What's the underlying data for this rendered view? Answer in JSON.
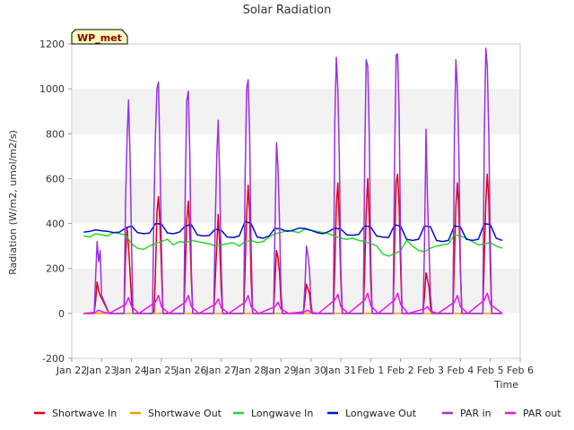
{
  "chart_data": {
    "type": "line",
    "title": "Solar Radiation",
    "xlabel": "Time",
    "ylabel": "Radiation (W/m2, umol/m2/s)",
    "ylim": [
      -200,
      1200
    ],
    "yticks": [
      -200,
      0,
      200,
      400,
      600,
      800,
      1000,
      1200
    ],
    "xlim": [
      0,
      15
    ],
    "xticks": [
      {
        "pos": 0,
        "label": "Jan 22"
      },
      {
        "pos": 1,
        "label": "Jan 23"
      },
      {
        "pos": 2,
        "label": "Jan 24"
      },
      {
        "pos": 3,
        "label": "Jan 25"
      },
      {
        "pos": 4,
        "label": "Jan 26"
      },
      {
        "pos": 5,
        "label": "Jan 27"
      },
      {
        "pos": 6,
        "label": "Jan 28"
      },
      {
        "pos": 7,
        "label": "Jan 29"
      },
      {
        "pos": 8,
        "label": "Jan 30"
      },
      {
        "pos": 9,
        "label": "Jan 31"
      },
      {
        "pos": 10,
        "label": "Feb 1"
      },
      {
        "pos": 11,
        "label": "Feb 2"
      },
      {
        "pos": 12,
        "label": "Feb 3"
      },
      {
        "pos": 13,
        "label": "Feb 4"
      },
      {
        "pos": 14,
        "label": "Feb 5"
      },
      {
        "pos": 15,
        "label": "Feb 6"
      }
    ],
    "grid_bands": true,
    "legend_position": "bottom",
    "site_label": "WP_met",
    "series": [
      {
        "name": "Shortwave In",
        "color": "#e0000c",
        "x": [
          0.4,
          0.75,
          0.8,
          0.85,
          0.9,
          0.95,
          1.25,
          1.75,
          1.8,
          1.85,
          1.9,
          1.95,
          2.0,
          2.05,
          2.25,
          2.75,
          2.8,
          2.85,
          2.9,
          2.95,
          3.0,
          3.05,
          3.25,
          3.75,
          3.8,
          3.85,
          3.9,
          3.95,
          4.0,
          4.05,
          4.25,
          4.75,
          4.8,
          4.85,
          4.9,
          4.95,
          5.0,
          5.05,
          5.25,
          5.75,
          5.8,
          5.85,
          5.9,
          5.95,
          6.0,
          6.05,
          6.25,
          6.75,
          6.8,
          6.85,
          6.9,
          6.95,
          7.0,
          7.05,
          7.25,
          7.75,
          7.8,
          7.85,
          7.9,
          7.95,
          8.0,
          8.05,
          8.25,
          8.75,
          8.8,
          8.85,
          8.9,
          8.95,
          9.0,
          9.05,
          9.25,
          9.75,
          9.8,
          9.85,
          9.9,
          9.95,
          10.0,
          10.05,
          10.25,
          10.75,
          10.8,
          10.85,
          10.9,
          10.95,
          11.0,
          11.05,
          11.25,
          11.75,
          11.8,
          11.85,
          11.9,
          11.95,
          12.0,
          12.05,
          12.25,
          12.75,
          12.8,
          12.85,
          12.9,
          12.95,
          13.0,
          13.05,
          13.25,
          13.75,
          13.8,
          13.85,
          13.9,
          13.95,
          14.0,
          14.05,
          14.4
        ],
        "y": [
          0,
          0,
          60,
          140,
          100,
          80,
          0,
          0,
          250,
          380,
          300,
          180,
          60,
          0,
          0,
          0,
          180,
          450,
          520,
          400,
          200,
          0,
          0,
          0,
          200,
          420,
          500,
          350,
          150,
          0,
          0,
          0,
          150,
          300,
          440,
          300,
          100,
          0,
          0,
          0,
          200,
          440,
          570,
          450,
          150,
          0,
          0,
          0,
          150,
          280,
          250,
          180,
          50,
          0,
          0,
          0,
          60,
          130,
          110,
          90,
          20,
          0,
          0,
          0,
          200,
          480,
          580,
          400,
          150,
          0,
          0,
          0,
          200,
          450,
          600,
          420,
          150,
          0,
          0,
          0,
          300,
          580,
          620,
          480,
          200,
          0,
          0,
          0,
          80,
          180,
          150,
          120,
          30,
          0,
          0,
          0,
          250,
          480,
          580,
          450,
          200,
          0,
          0,
          0,
          250,
          500,
          620,
          500,
          200,
          0,
          0
        ]
      },
      {
        "name": "Shortwave Out",
        "color": "#f0a000",
        "x": [
          0.4,
          14.4
        ],
        "y": [
          0,
          0
        ]
      },
      {
        "name": "Longwave In",
        "color": "#22dd22",
        "x": [
          0.4,
          0.6,
          0.8,
          1.0,
          1.2,
          1.4,
          1.6,
          1.8,
          2.0,
          2.2,
          2.4,
          2.6,
          2.8,
          3.0,
          3.2,
          3.4,
          3.6,
          3.8,
          4.0,
          4.2,
          4.4,
          4.6,
          4.8,
          5.0,
          5.2,
          5.4,
          5.6,
          5.8,
          6.0,
          6.2,
          6.4,
          6.6,
          6.8,
          7.0,
          7.2,
          7.4,
          7.6,
          7.8,
          8.0,
          8.2,
          8.4,
          8.6,
          8.8,
          9.0,
          9.2,
          9.4,
          9.6,
          9.8,
          10.0,
          10.2,
          10.4,
          10.6,
          10.8,
          11.0,
          11.2,
          11.4,
          11.6,
          11.8,
          12.0,
          12.2,
          12.4,
          12.6,
          12.8,
          13.0,
          13.2,
          13.4,
          13.6,
          13.8,
          14.0,
          14.2,
          14.4
        ],
        "y": [
          345,
          340,
          355,
          350,
          345,
          360,
          355,
          350,
          310,
          290,
          285,
          300,
          310,
          320,
          330,
          305,
          320,
          315,
          325,
          320,
          315,
          310,
          300,
          305,
          310,
          315,
          300,
          320,
          325,
          315,
          320,
          340,
          355,
          360,
          370,
          365,
          360,
          375,
          370,
          365,
          360,
          355,
          345,
          335,
          330,
          335,
          325,
          320,
          310,
          300,
          265,
          255,
          265,
          280,
          325,
          300,
          280,
          275,
          290,
          300,
          305,
          310,
          350,
          345,
          335,
          320,
          305,
          310,
          315,
          300,
          290
        ]
      },
      {
        "name": "Longwave Out",
        "color": "#0010cc",
        "x": [
          0.4,
          0.6,
          0.8,
          1.0,
          1.2,
          1.4,
          1.6,
          1.8,
          2.0,
          2.2,
          2.4,
          2.6,
          2.8,
          3.0,
          3.2,
          3.4,
          3.6,
          3.8,
          4.0,
          4.2,
          4.4,
          4.6,
          4.8,
          5.0,
          5.2,
          5.4,
          5.6,
          5.8,
          6.0,
          6.2,
          6.4,
          6.6,
          6.8,
          7.0,
          7.2,
          7.4,
          7.6,
          7.8,
          8.0,
          8.2,
          8.4,
          8.6,
          8.8,
          9.0,
          9.2,
          9.4,
          9.6,
          9.8,
          10.0,
          10.2,
          10.4,
          10.6,
          10.8,
          11.0,
          11.2,
          11.4,
          11.6,
          11.8,
          12.0,
          12.2,
          12.4,
          12.6,
          12.8,
          13.0,
          13.2,
          13.4,
          13.6,
          13.8,
          14.0,
          14.2,
          14.4
        ],
        "y": [
          362,
          365,
          372,
          368,
          365,
          360,
          362,
          380,
          390,
          360,
          355,
          358,
          400,
          398,
          358,
          355,
          362,
          390,
          395,
          350,
          345,
          347,
          375,
          370,
          340,
          338,
          345,
          410,
          400,
          340,
          335,
          345,
          380,
          375,
          365,
          370,
          380,
          378,
          370,
          360,
          355,
          365,
          380,
          375,
          350,
          348,
          352,
          390,
          385,
          345,
          340,
          338,
          395,
          388,
          330,
          325,
          330,
          390,
          385,
          325,
          320,
          325,
          390,
          385,
          330,
          325,
          330,
          400,
          395,
          335,
          325
        ]
      },
      {
        "name": "PAR in",
        "color": "#9b30e0",
        "x": [
          0.4,
          0.75,
          0.8,
          0.85,
          0.9,
          0.95,
          1.0,
          1.25,
          1.75,
          1.8,
          1.85,
          1.9,
          1.95,
          2.0,
          2.05,
          2.25,
          2.7,
          2.75,
          2.8,
          2.85,
          2.9,
          2.95,
          3.0,
          3.05,
          3.25,
          3.75,
          3.8,
          3.85,
          3.9,
          3.95,
          4.0,
          4.05,
          4.25,
          4.75,
          4.8,
          4.85,
          4.9,
          4.95,
          5.0,
          5.05,
          5.25,
          5.75,
          5.8,
          5.85,
          5.9,
          5.95,
          6.0,
          6.05,
          6.25,
          6.75,
          6.8,
          6.85,
          6.9,
          6.95,
          7.0,
          7.05,
          7.25,
          7.75,
          7.8,
          7.85,
          7.9,
          7.95,
          8.0,
          8.05,
          8.25,
          8.75,
          8.8,
          8.85,
          8.9,
          8.95,
          9.0,
          9.05,
          9.25,
          9.75,
          9.8,
          9.85,
          9.9,
          9.95,
          10.0,
          10.05,
          10.25,
          10.75,
          10.8,
          10.85,
          10.9,
          10.95,
          11.0,
          11.05,
          11.25,
          11.75,
          11.8,
          11.85,
          11.9,
          11.95,
          12.0,
          12.05,
          12.25,
          12.75,
          12.8,
          12.85,
          12.9,
          12.95,
          13.0,
          13.05,
          13.25,
          13.75,
          13.8,
          13.85,
          13.9,
          13.95,
          14.0,
          14.05,
          14.4
        ],
        "y": [
          0,
          0,
          170,
          320,
          230,
          280,
          80,
          0,
          0,
          500,
          780,
          950,
          700,
          300,
          0,
          0,
          0,
          480,
          800,
          1000,
          1030,
          700,
          300,
          0,
          0,
          0,
          600,
          950,
          990,
          700,
          200,
          0,
          0,
          0,
          400,
          700,
          860,
          600,
          200,
          0,
          0,
          0,
          600,
          1000,
          1040,
          800,
          300,
          0,
          0,
          0,
          400,
          760,
          650,
          400,
          100,
          0,
          0,
          0,
          120,
          300,
          260,
          200,
          50,
          0,
          0,
          0,
          850,
          1140,
          1000,
          700,
          200,
          0,
          0,
          0,
          700,
          1130,
          1100,
          800,
          250,
          0,
          0,
          0,
          700,
          1150,
          1155,
          900,
          300,
          0,
          0,
          0,
          300,
          820,
          500,
          300,
          80,
          0,
          0,
          0,
          800,
          1130,
          1000,
          700,
          200,
          0,
          0,
          0,
          800,
          1180,
          1100,
          800,
          300,
          0,
          0
        ]
      },
      {
        "name": "PAR out",
        "color": "#ee10ee",
        "x": [
          0.4,
          0.8,
          0.9,
          1.0,
          1.25,
          1.8,
          1.9,
          2.0,
          2.25,
          2.8,
          2.9,
          3.0,
          3.25,
          3.8,
          3.9,
          4.0,
          4.25,
          4.8,
          4.9,
          5.0,
          5.25,
          5.8,
          5.9,
          6.0,
          6.25,
          6.8,
          6.9,
          7.0,
          7.25,
          7.8,
          7.9,
          8.0,
          8.25,
          8.8,
          8.9,
          9.0,
          9.25,
          9.8,
          9.9,
          10.0,
          10.25,
          10.8,
          10.9,
          11.0,
          11.25,
          11.8,
          11.9,
          12.0,
          12.25,
          12.8,
          12.9,
          13.0,
          13.25,
          13.8,
          13.9,
          14.0,
          14.4
        ],
        "y": [
          0,
          5,
          15,
          8,
          0,
          40,
          70,
          30,
          0,
          50,
          80,
          30,
          0,
          50,
          80,
          30,
          0,
          40,
          65,
          25,
          0,
          50,
          80,
          30,
          0,
          30,
          50,
          20,
          0,
          8,
          15,
          5,
          0,
          60,
          85,
          30,
          0,
          60,
          90,
          35,
          0,
          60,
          90,
          40,
          0,
          20,
          30,
          10,
          0,
          50,
          80,
          30,
          0,
          60,
          90,
          40,
          0
        ]
      }
    ]
  }
}
